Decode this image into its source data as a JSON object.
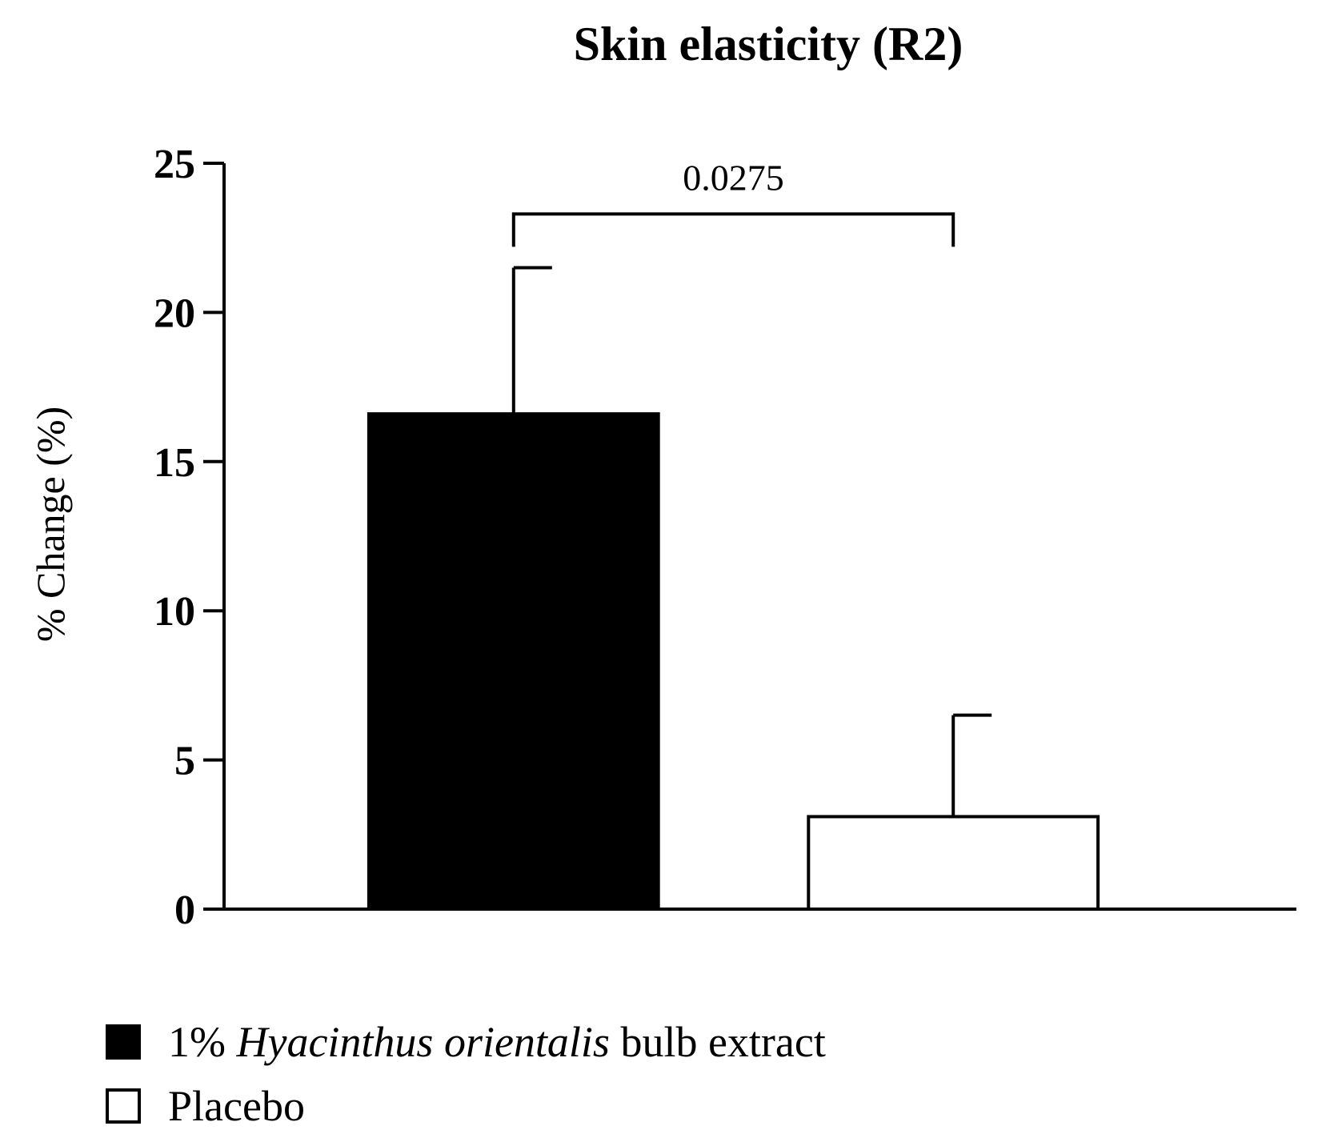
{
  "chart_data": {
    "type": "bar",
    "title": "Skin elasticity (R2)",
    "ylabel": "% Change (%)",
    "xlabel": "",
    "ylim": [
      0,
      25
    ],
    "yticks": [
      "0",
      "5",
      "10",
      "15",
      "20",
      "25"
    ],
    "categories": [
      "1% Hyacinthus orientalis bulb extract",
      "Placebo"
    ],
    "values": [
      16.6,
      3.1
    ],
    "errors": [
      4.9,
      3.4
    ],
    "bar_colors": [
      "#000000",
      "#ffffff"
    ],
    "significance": {
      "between": [
        0,
        1
      ],
      "label": "0.0275"
    },
    "grid": false,
    "legend_position": "bottom-left"
  },
  "legend": {
    "items": [
      {
        "prefix": "1% ",
        "italic": "Hyacinthus orientalis",
        "suffix": " bulb extract",
        "color": "#000000"
      },
      {
        "prefix": "Placebo",
        "italic": "",
        "suffix": "",
        "color": "#ffffff"
      }
    ]
  }
}
